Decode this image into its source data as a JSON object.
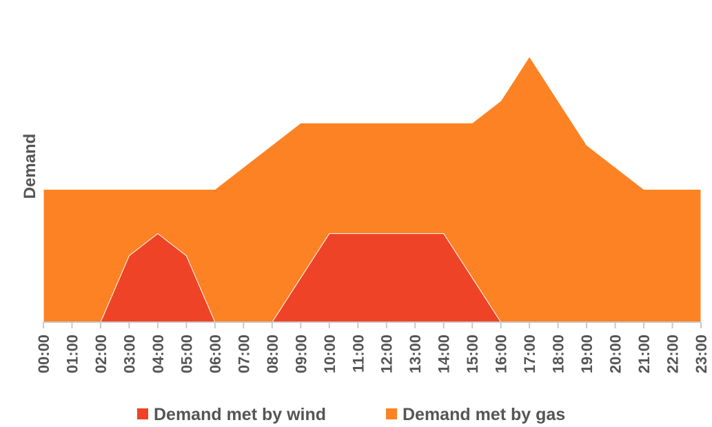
{
  "chart_data": {
    "type": "area",
    "stacked": false,
    "title": "",
    "xlabel": "",
    "ylabel": "Demand",
    "ylim": [
      0,
      12
    ],
    "y_ticks_visible": false,
    "grid": false,
    "legend_position": "bottom-center",
    "categories": [
      "00:00",
      "01:00",
      "02:00",
      "03:00",
      "04:00",
      "05:00",
      "06:00",
      "07:00",
      "08:00",
      "09:00",
      "10:00",
      "11:00",
      "12:00",
      "13:00",
      "14:00",
      "15:00",
      "16:00",
      "17:00",
      "18:00",
      "19:00",
      "20:00",
      "21:00",
      "22:00",
      "23:00"
    ],
    "series": [
      {
        "name": "Demand met by gas",
        "color": "#fd8224",
        "values": [
          6,
          6,
          6,
          6,
          6,
          6,
          6,
          7,
          8,
          9,
          9,
          9,
          9,
          9,
          9,
          9,
          10,
          12,
          10,
          8,
          7,
          6,
          6,
          6
        ]
      },
      {
        "name": "Demand met by wind",
        "color": "#ee4326",
        "values": [
          0,
          0,
          0,
          3,
          4,
          3,
          0,
          0,
          0,
          2,
          4,
          4,
          4,
          4,
          4,
          2,
          0,
          0,
          0,
          0,
          0,
          0,
          0,
          0
        ]
      }
    ],
    "legend": [
      {
        "label": "Demand met by wind",
        "color": "#ee4326"
      },
      {
        "label": "Demand met by gas",
        "color": "#fd8224"
      }
    ],
    "axis_color": "#c8c8c8"
  }
}
